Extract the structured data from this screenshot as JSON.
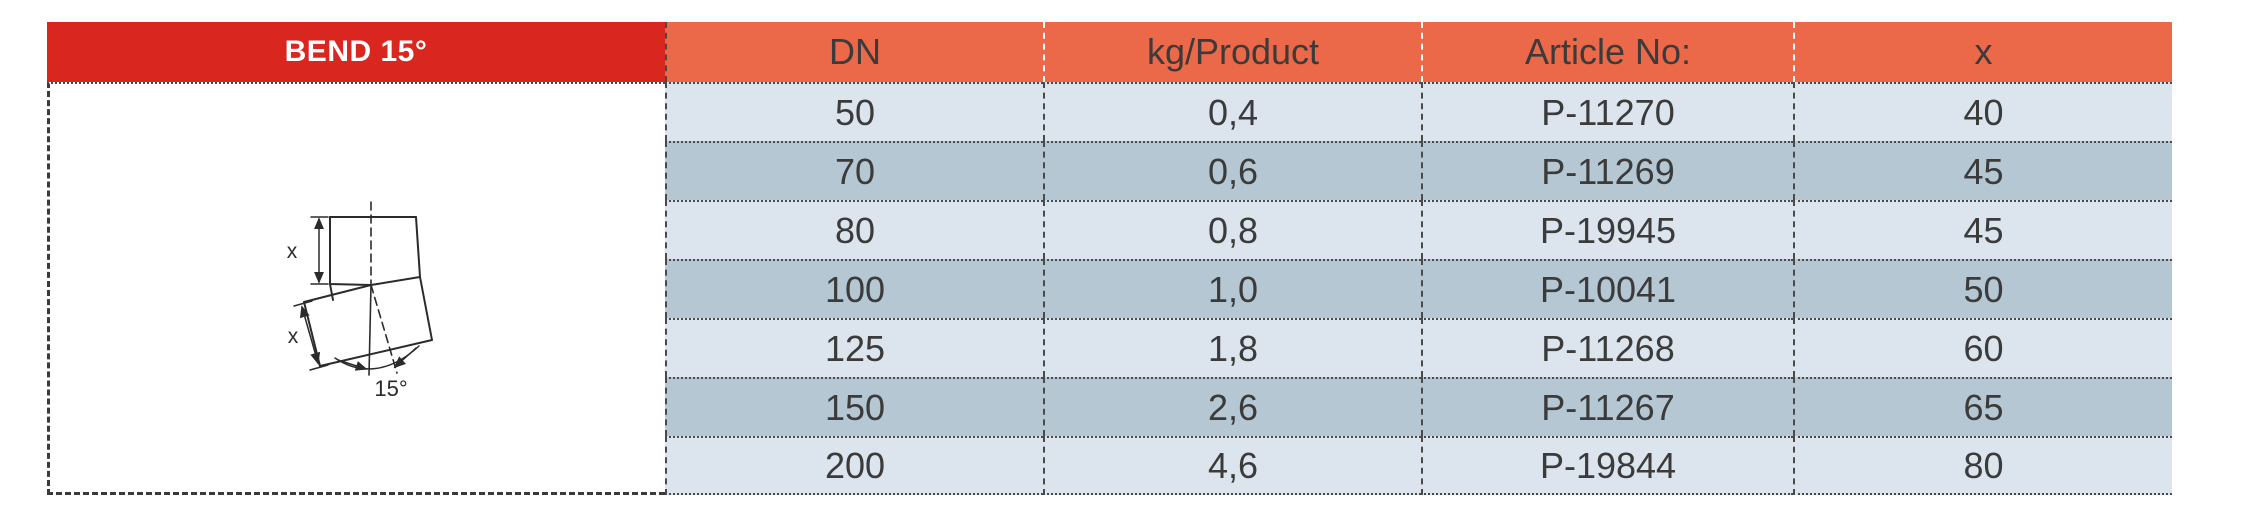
{
  "title": "BEND 15°",
  "table": {
    "columns": [
      {
        "key": "dn",
        "label": "DN"
      },
      {
        "key": "kg-product",
        "label": "kg/Product"
      },
      {
        "key": "article-no",
        "label": "Article No:"
      },
      {
        "key": "x",
        "label": "x"
      }
    ],
    "rows": [
      [
        "50",
        "0,4",
        "P-11270",
        "40"
      ],
      [
        "70",
        "0,6",
        "P-11269",
        "45"
      ],
      [
        "80",
        "0,8",
        "P-19945",
        "45"
      ],
      [
        "100",
        "1,0",
        "P-10041",
        "50"
      ],
      [
        "125",
        "1,8",
        "P-11268",
        "60"
      ],
      [
        "150",
        "2,6",
        "P-11267",
        "65"
      ],
      [
        "200",
        "4,6",
        "P-19844",
        "80"
      ]
    ]
  },
  "diagram": {
    "dimension_label_upper": "x",
    "dimension_label_lower": "x",
    "angle_label": "15°"
  },
  "colors": {
    "red": "#D9261E",
    "orange": "#EB6848",
    "row_light": "#DCE4ED",
    "row_dark": "#B4C7D3",
    "text": "#3B3B3B"
  }
}
